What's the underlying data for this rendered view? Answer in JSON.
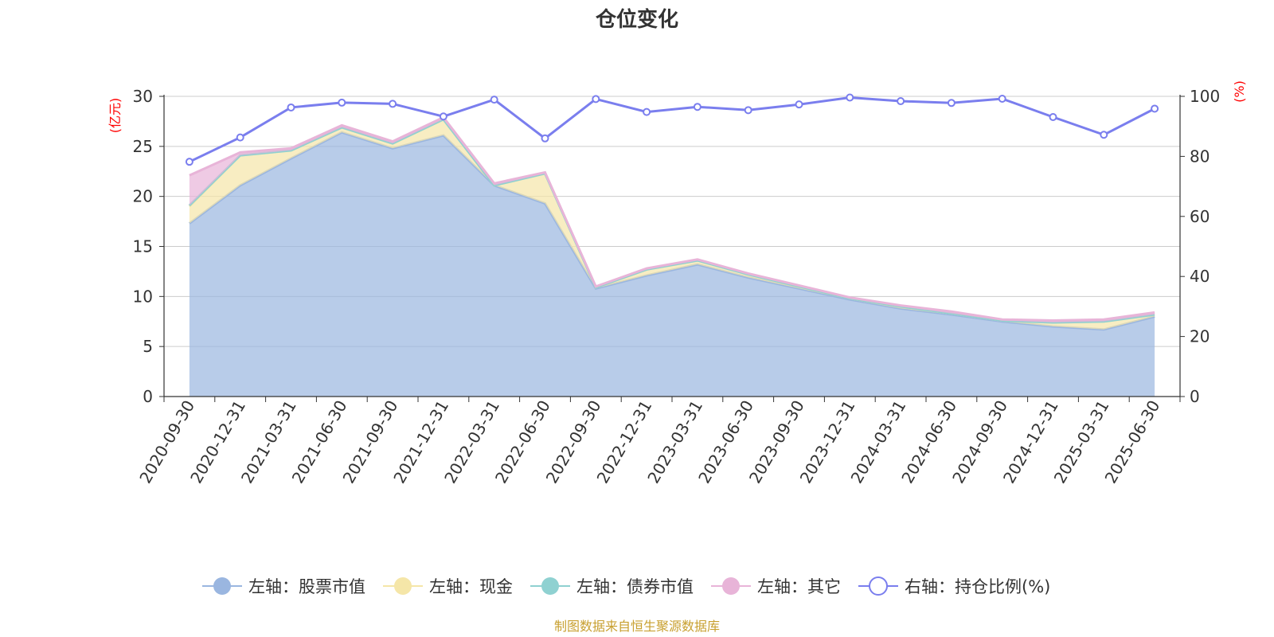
{
  "chart_data": {
    "type": "area",
    "title": "仓位变化",
    "left_axis_unit": "(亿元)",
    "right_axis_unit": "(%)",
    "ylim_left": [
      0,
      30
    ],
    "yticks_left": [
      "0",
      "5",
      "10",
      "15",
      "20",
      "25",
      "30"
    ],
    "ylim_right": [
      0,
      100
    ],
    "yticks_right": [
      "0",
      "20",
      "40",
      "60",
      "80",
      "100"
    ],
    "grid": true,
    "legend_position": "bottom",
    "categories": [
      "2020-09-30",
      "2020-12-31",
      "2021-03-31",
      "2021-06-30",
      "2021-09-30",
      "2021-12-31",
      "2022-03-31",
      "2022-06-30",
      "2022-09-30",
      "2022-12-31",
      "2023-03-31",
      "2023-06-30",
      "2023-09-30",
      "2023-12-31",
      "2024-03-31",
      "2024-06-30",
      "2024-09-30",
      "2024-12-31",
      "2025-03-31",
      "2025-06-30"
    ],
    "series": [
      {
        "name": "左轴：股票市值",
        "axis": "left",
        "kind": "stacked-area",
        "color": "#9ab6e0",
        "values": [
          17.3,
          21.1,
          23.8,
          26.4,
          24.8,
          26.1,
          21.1,
          19.3,
          10.8,
          12.1,
          13.2,
          11.9,
          10.8,
          9.7,
          8.8,
          8.2,
          7.5,
          7.0,
          6.7,
          8.0
        ]
      },
      {
        "name": "左轴：现金",
        "axis": "left",
        "kind": "stacked-area",
        "color": "#f5e6a8",
        "values": [
          1.7,
          3.0,
          0.8,
          0.5,
          0.5,
          1.6,
          0.0,
          3.0,
          0.1,
          0.6,
          0.4,
          0.3,
          0.2,
          0.1,
          0.2,
          0.1,
          0.1,
          0.4,
          0.8,
          0.2
        ]
      },
      {
        "name": "左轴：债券市值",
        "axis": "left",
        "kind": "stacked-area",
        "color": "#8fd1d1",
        "values": [
          0.1,
          0.0,
          0.0,
          0.0,
          0.0,
          0.0,
          0.0,
          0.0,
          0.0,
          0.0,
          0.0,
          0.0,
          0.0,
          0.0,
          0.0,
          0.0,
          0.0,
          0.0,
          0.0,
          0.0
        ]
      },
      {
        "name": "左轴：其它",
        "axis": "left",
        "kind": "stacked-area",
        "color": "#e8b4d8",
        "values": [
          3.0,
          0.3,
          0.2,
          0.2,
          0.2,
          0.2,
          0.2,
          0.1,
          0.1,
          0.1,
          0.1,
          0.1,
          0.1,
          0.1,
          0.1,
          0.2,
          0.1,
          0.2,
          0.2,
          0.2
        ]
      },
      {
        "name": "右轴：持仓比例(%)",
        "axis": "right",
        "kind": "line",
        "color": "#7a7eee",
        "values": [
          78.2,
          86.3,
          96.3,
          97.9,
          97.5,
          93.3,
          98.9,
          86.0,
          99.1,
          94.8,
          96.5,
          95.4,
          97.3,
          99.6,
          98.4,
          97.8,
          99.2,
          93.1,
          87.2,
          95.9
        ]
      }
    ],
    "source_note": "制图数据来自恒生聚源数据库"
  }
}
